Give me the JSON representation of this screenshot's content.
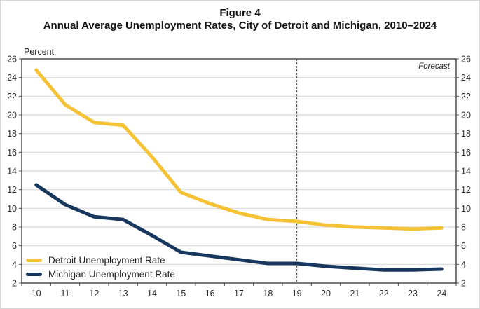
{
  "title": {
    "line1": "Figure 4",
    "line2": "Annual Average Unemployment Rates, City of Detroit and Michigan, 2010–2024"
  },
  "axis": {
    "y_unit_label": "Percent",
    "y_min": 2,
    "y_max": 26,
    "y_step": 2,
    "x_tick_labels": [
      "10",
      "11",
      "12",
      "13",
      "14",
      "15",
      "16",
      "17",
      "18",
      "19",
      "20",
      "21",
      "22",
      "23",
      "24"
    ]
  },
  "annotations": {
    "forecast_label": "Forecast",
    "forecast_start_category": "19"
  },
  "legend": [
    {
      "label": "Detroit Unemployment Rate",
      "color": "#F5C235"
    },
    {
      "label": "Michigan Unemployment Rate",
      "color": "#17375E"
    }
  ],
  "colors": {
    "detroit_line": "#F5C235",
    "michigan_line": "#17375E",
    "gridline": "#D9D9D9",
    "plot_border": "#4D4D4D",
    "forecast_divider": "#3A3A3A",
    "tick_text": "#2B2B2B"
  },
  "chart_data": {
    "type": "line",
    "title": "Annual Average Unemployment Rates, City of Detroit and Michigan, 2010–2024",
    "figure_number": "Figure 4",
    "categories": [
      "10",
      "11",
      "12",
      "13",
      "14",
      "15",
      "16",
      "17",
      "18",
      "19",
      "20",
      "21",
      "22",
      "23",
      "24"
    ],
    "series": [
      {
        "name": "Detroit Unemployment Rate",
        "color": "#F5C235",
        "values": [
          24.8,
          21.1,
          19.2,
          18.9,
          15.5,
          11.7,
          10.5,
          9.5,
          8.8,
          8.6,
          8.2,
          8.0,
          7.9,
          7.8,
          7.9
        ]
      },
      {
        "name": "Michigan Unemployment Rate",
        "color": "#17375E",
        "values": [
          12.5,
          10.4,
          9.1,
          8.8,
          7.1,
          5.3,
          4.9,
          4.5,
          4.1,
          4.1,
          3.8,
          3.6,
          3.4,
          3.4,
          3.5
        ]
      }
    ],
    "ylabel": "Percent",
    "xlabel": "",
    "ylim": [
      2,
      26
    ],
    "grid": true,
    "legend_position": "inside-bottom-left",
    "forecast_divider_at_category": "19",
    "forecast_annotation": "Forecast"
  }
}
